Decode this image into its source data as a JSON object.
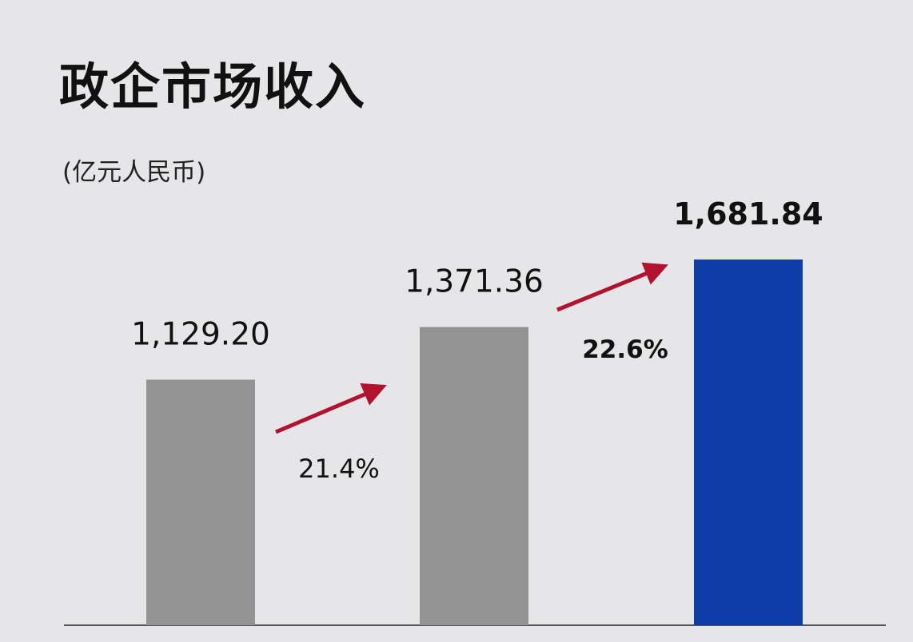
{
  "chart_data": {
    "type": "bar",
    "title": "政企市场收入",
    "unit_label": "(亿元人民币)",
    "categories": [
      "",
      "",
      ""
    ],
    "values": [
      1129.2,
      1371.36,
      1681.84
    ],
    "value_labels": [
      "1,129.20",
      "1,371.36",
      "1,681.84"
    ],
    "bar_colors": [
      "#939393",
      "#939393",
      "#0d3ea8"
    ],
    "growth": [
      {
        "from": 0,
        "to": 1,
        "label": "21.4%"
      },
      {
        "from": 1,
        "to": 2,
        "label": "22.6%"
      }
    ],
    "arrow_color": "#b3122e",
    "ylim": [
      0,
      1681.84
    ],
    "grid": false,
    "legend": "none"
  }
}
